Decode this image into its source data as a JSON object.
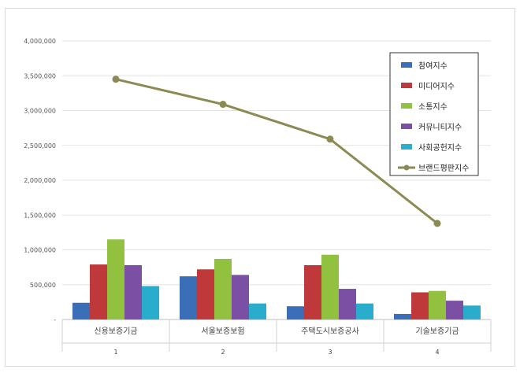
{
  "chart_data": {
    "type": "bar",
    "categories": [
      "신용보증기금",
      "서울보증보험",
      "주택도시보증공사",
      "기술보증기금"
    ],
    "category_index": [
      "1",
      "2",
      "3",
      "4"
    ],
    "ylim": [
      0,
      4000000
    ],
    "yticks": [
      0,
      500000,
      1000000,
      1500000,
      2000000,
      2500000,
      3000000,
      3500000,
      4000000
    ],
    "ytick_labels": [
      "-",
      "500,000",
      "1,000,000",
      "1,500,000",
      "2,000,000",
      "2,500,000",
      "3,000,000",
      "3,500,000",
      "4,000,000"
    ],
    "grid": true,
    "legend_position": "top-right",
    "series": [
      {
        "name": "참여지수",
        "type": "bar",
        "color": "#3a6fb7",
        "values": [
          240000,
          620000,
          190000,
          80000
        ]
      },
      {
        "name": "미디어지수",
        "type": "bar",
        "color": "#c0393a",
        "values": [
          790000,
          720000,
          780000,
          390000
        ]
      },
      {
        "name": "소통지수",
        "type": "bar",
        "color": "#92c13f",
        "values": [
          1150000,
          870000,
          930000,
          410000
        ]
      },
      {
        "name": "커뮤니티지수",
        "type": "bar",
        "color": "#7b4fa3",
        "values": [
          780000,
          640000,
          440000,
          270000
        ]
      },
      {
        "name": "사회공헌지수",
        "type": "bar",
        "color": "#2aaccc",
        "values": [
          480000,
          230000,
          230000,
          200000
        ]
      },
      {
        "name": "브랜드평판지수",
        "type": "line",
        "color": "#8b8a52",
        "values": [
          3450000,
          3090000,
          2590000,
          1380000
        ]
      }
    ]
  }
}
